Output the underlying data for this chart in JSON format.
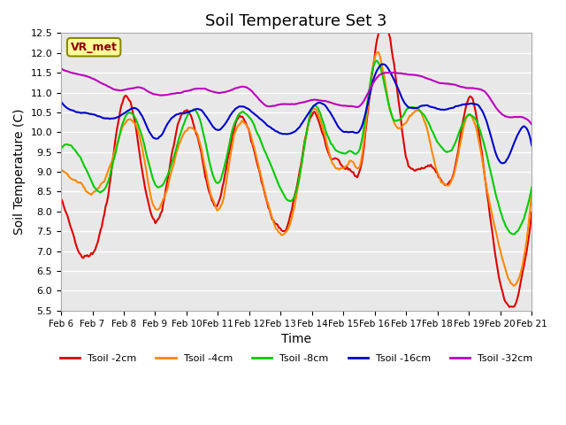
{
  "title": "Soil Temperature Set 3",
  "xlabel": "Time",
  "ylabel": "Soil Temperature (C)",
  "ylim": [
    5.5,
    12.5
  ],
  "yticks": [
    5.5,
    6.0,
    6.5,
    7.0,
    7.5,
    8.0,
    8.5,
    9.0,
    9.5,
    10.0,
    10.5,
    11.0,
    11.5,
    12.0,
    12.5
  ],
  "xtick_labels": [
    "Feb 6",
    "Feb 7",
    "Feb 8",
    "Feb 9",
    "Feb 10",
    "Feb 11",
    "Feb 12",
    "Feb 13",
    "Feb 14",
    "Feb 15",
    "Feb 16",
    "Feb 17",
    "Feb 18",
    "Feb 19",
    "Feb 20",
    "Feb 21"
  ],
  "series_colors": [
    "#dd0000",
    "#ff8800",
    "#00cc00",
    "#0000cc",
    "#bb00bb"
  ],
  "series_labels": [
    "Tsoil -2cm",
    "Tsoil -4cm",
    "Tsoil -8cm",
    "Tsoil -16cm",
    "Tsoil -32cm"
  ],
  "line_width": 1.5,
  "bg_color": "#e8e8e8",
  "grid_color": "#ffffff",
  "legend_label": "VR_met",
  "legend_bg": "#ffff99",
  "legend_border": "#888800",
  "title_fontsize": 13,
  "label_fontsize": 10
}
